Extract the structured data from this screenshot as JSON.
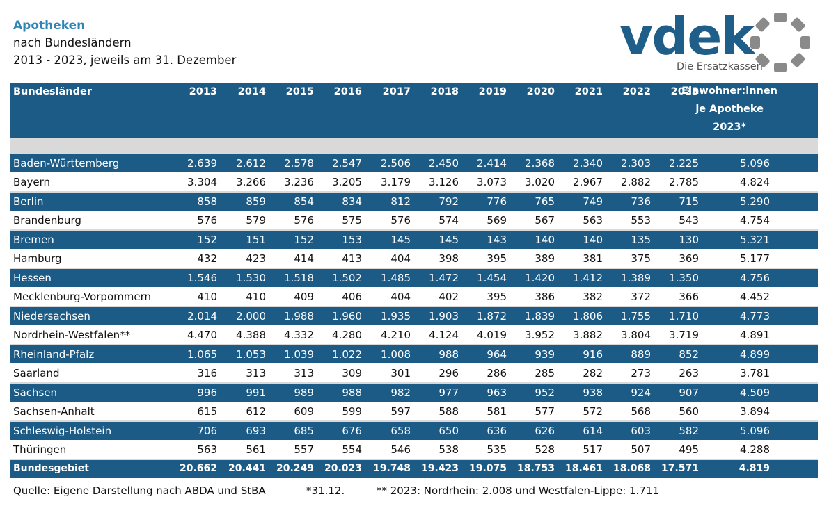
{
  "header": {
    "title": "Apotheken",
    "subtitle1": "nach Bundesländern",
    "subtitle2": "2013 - 2023, jeweils am 31. Dezember"
  },
  "logo": {
    "word": "vdek",
    "tagline": "Die Ersatzkassen",
    "colors": {
      "word": "#1f5e88",
      "ring": "#8a8a8a"
    }
  },
  "table": {
    "headers": {
      "name": "Bundesländer",
      "years": [
        "2013",
        "2014",
        "2015",
        "2016",
        "2017",
        "2018",
        "2019",
        "2020",
        "2021",
        "2022",
        "2023"
      ],
      "last": [
        "Einwohner:innen",
        "je Apotheke",
        "2023*"
      ]
    },
    "rows": [
      {
        "name": "Baden-Württemberg",
        "values": [
          "2.639",
          "2.612",
          "2.578",
          "2.547",
          "2.506",
          "2.450",
          "2.414",
          "2.368",
          "2.340",
          "2.303",
          "2.225"
        ],
        "per": "5.096"
      },
      {
        "name": "Bayern",
        "values": [
          "3.304",
          "3.266",
          "3.236",
          "3.205",
          "3.179",
          "3.126",
          "3.073",
          "3.020",
          "2.967",
          "2.882",
          "2.785"
        ],
        "per": "4.824"
      },
      {
        "name": "Berlin",
        "values": [
          "858",
          "859",
          "854",
          "834",
          "812",
          "792",
          "776",
          "765",
          "749",
          "736",
          "715"
        ],
        "per": "5.290"
      },
      {
        "name": "Brandenburg",
        "values": [
          "576",
          "579",
          "576",
          "575",
          "576",
          "574",
          "569",
          "567",
          "563",
          "553",
          "543"
        ],
        "per": "4.754"
      },
      {
        "name": "Bremen",
        "values": [
          "152",
          "151",
          "152",
          "153",
          "145",
          "145",
          "143",
          "140",
          "140",
          "135",
          "130"
        ],
        "per": "5.321"
      },
      {
        "name": "Hamburg",
        "values": [
          "432",
          "423",
          "414",
          "413",
          "404",
          "398",
          "395",
          "389",
          "381",
          "375",
          "369"
        ],
        "per": "5.177"
      },
      {
        "name": "Hessen",
        "values": [
          "1.546",
          "1.530",
          "1.518",
          "1.502",
          "1.485",
          "1.472",
          "1.454",
          "1.420",
          "1.412",
          "1.389",
          "1.350"
        ],
        "per": "4.756"
      },
      {
        "name": "Mecklenburg-Vorpommern",
        "values": [
          "410",
          "410",
          "409",
          "406",
          "404",
          "402",
          "395",
          "386",
          "382",
          "372",
          "366"
        ],
        "per": "4.452"
      },
      {
        "name": "Niedersachsen",
        "values": [
          "2.014",
          "2.000",
          "1.988",
          "1.960",
          "1.935",
          "1.903",
          "1.872",
          "1.839",
          "1.806",
          "1.755",
          "1.710"
        ],
        "per": "4.773"
      },
      {
        "name": "Nordrhein-Westfalen**",
        "values": [
          "4.470",
          "4.388",
          "4.332",
          "4.280",
          "4.210",
          "4.124",
          "4.019",
          "3.952",
          "3.882",
          "3.804",
          "3.719"
        ],
        "per": "4.891"
      },
      {
        "name": "Rheinland-Pfalz",
        "values": [
          "1.065",
          "1.053",
          "1.039",
          "1.022",
          "1.008",
          "988",
          "964",
          "939",
          "916",
          "889",
          "852"
        ],
        "per": "4.899"
      },
      {
        "name": "Saarland",
        "values": [
          "316",
          "313",
          "313",
          "309",
          "301",
          "296",
          "286",
          "285",
          "282",
          "273",
          "263"
        ],
        "per": "3.781"
      },
      {
        "name": "Sachsen",
        "values": [
          "996",
          "991",
          "989",
          "988",
          "982",
          "977",
          "963",
          "952",
          "938",
          "924",
          "907"
        ],
        "per": "4.509"
      },
      {
        "name": "Sachsen-Anhalt",
        "values": [
          "615",
          "612",
          "609",
          "599",
          "597",
          "588",
          "581",
          "577",
          "572",
          "568",
          "560"
        ],
        "per": "3.894"
      },
      {
        "name": "Schleswig-Holstein",
        "values": [
          "706",
          "693",
          "685",
          "676",
          "658",
          "650",
          "636",
          "626",
          "614",
          "603",
          "582"
        ],
        "per": "5.096"
      },
      {
        "name": "Thüringen",
        "values": [
          "563",
          "561",
          "557",
          "554",
          "546",
          "538",
          "535",
          "528",
          "517",
          "507",
          "495"
        ],
        "per": "4.288"
      }
    ],
    "total": {
      "name": "Bundesgebiet",
      "values": [
        "20.662",
        "20.441",
        "20.249",
        "20.023",
        "19.748",
        "19.423",
        "19.075",
        "18.753",
        "18.461",
        "18.068",
        "17.571"
      ],
      "per": "4.819"
    },
    "colors": {
      "header_bg": "#1c5b86",
      "gap_bg": "#d9d9d9"
    }
  },
  "footer": {
    "source": "Quelle: Eigene Darstellung nach ABDA und StBA",
    "note1": "*31.12.",
    "note2": "** 2023: Nordrhein: 2.008 und Westfalen-Lippe: 1.711"
  }
}
